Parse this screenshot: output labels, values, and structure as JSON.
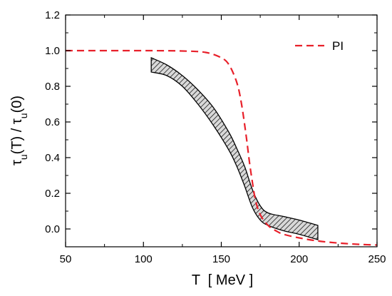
{
  "chart_data": {
    "type": "line",
    "xlabel": "T  [ MeV ]",
    "ylabel": {
      "parts": [
        {
          "text": "τ",
          "sub": false
        },
        {
          "text": "u",
          "sub": true
        },
        {
          "text": "(T) / τ",
          "sub": false
        },
        {
          "text": "u",
          "sub": true
        },
        {
          "text": "(0)",
          "sub": false
        }
      ]
    },
    "xlim": [
      50,
      250
    ],
    "ylim": [
      -0.1,
      1.2
    ],
    "xticks": [
      50,
      100,
      150,
      200,
      250
    ],
    "xtick_labels": [
      "50",
      "100",
      "150",
      "200",
      "250"
    ],
    "yticks": [
      0.0,
      0.2,
      0.4,
      0.6,
      0.8,
      1.0,
      1.2
    ],
    "ytick_labels": [
      "0.0",
      "0.2",
      "0.4",
      "0.6",
      "0.8",
      "1.0",
      "1.2"
    ],
    "grid": false,
    "legend_position": "top-right",
    "series": [
      {
        "name": "PI",
        "style": "dashed",
        "color": "#e8202a",
        "x": [
          50,
          100,
          125,
          140,
          150,
          155,
          160,
          163,
          166,
          168,
          170,
          172,
          175,
          180,
          185,
          190,
          200,
          210,
          220,
          230,
          240,
          250
        ],
        "y": [
          1.0,
          1.0,
          0.998,
          0.99,
          0.96,
          0.92,
          0.82,
          0.7,
          0.52,
          0.38,
          0.26,
          0.16,
          0.08,
          0.02,
          -0.01,
          -0.03,
          -0.05,
          -0.065,
          -0.075,
          -0.082,
          -0.087,
          -0.09
        ]
      }
    ],
    "band": {
      "fill": "hatched",
      "x": [
        105,
        115,
        125,
        135,
        145,
        155,
        160,
        165,
        170,
        175,
        180,
        190,
        200,
        212
      ],
      "upper": [
        0.96,
        0.92,
        0.86,
        0.78,
        0.68,
        0.54,
        0.45,
        0.35,
        0.22,
        0.13,
        0.09,
        0.07,
        0.05,
        0.02
      ],
      "lower": [
        0.88,
        0.86,
        0.8,
        0.7,
        0.58,
        0.44,
        0.35,
        0.24,
        0.12,
        0.05,
        0.02,
        -0.01,
        -0.03,
        -0.06
      ]
    }
  }
}
